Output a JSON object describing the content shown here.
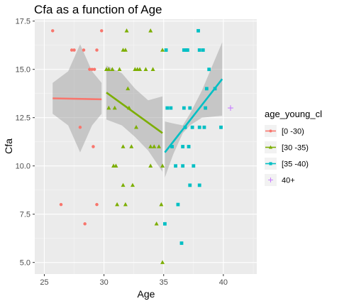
{
  "chart_data": {
    "type": "scatter",
    "title": "Cfa as a function of Age",
    "xlabel": "Age",
    "ylabel": "Cfa",
    "xlim": [
      24.2,
      42.8
    ],
    "ylim": [
      4.4,
      17.6
    ],
    "x_ticks": [
      25,
      30,
      35,
      40
    ],
    "y_ticks": [
      5.0,
      7.5,
      10.0,
      12.5,
      15.0,
      17.5
    ],
    "x_tick_labels": [
      "25",
      "30",
      "35",
      "40"
    ],
    "y_tick_labels": [
      "5.0",
      "7.5",
      "10.0",
      "12.5",
      "15.0",
      "17.5"
    ],
    "grid": true,
    "legend": {
      "title": "age_young_cl",
      "position": "right"
    },
    "series": [
      {
        "name": "[0 -30)",
        "color": "#f8766d",
        "marker": "circle",
        "points": [
          [
            25.7,
            17
          ],
          [
            29.8,
            17
          ],
          [
            27.3,
            16
          ],
          [
            27.5,
            16
          ],
          [
            28.3,
            16
          ],
          [
            29.4,
            16
          ],
          [
            28.8,
            15
          ],
          [
            29.0,
            15
          ],
          [
            29.2,
            15
          ],
          [
            28.0,
            12
          ],
          [
            29.1,
            11
          ],
          [
            26.4,
            8
          ],
          [
            29.4,
            8
          ],
          [
            28.4,
            7
          ]
        ],
        "trend": {
          "x": [
            25.7,
            29.8
          ],
          "y": [
            13.5,
            13.45
          ]
        },
        "band": {
          "x": [
            25.7,
            27.0,
            28.0,
            29.0,
            29.8
          ],
          "lower": [
            12.7,
            12.1,
            10.7,
            12.1,
            12.7
          ],
          "upper": [
            14.3,
            14.9,
            16.3,
            14.9,
            14.3
          ]
        }
      },
      {
        "name": "[30 -35)",
        "color": "#7cae00",
        "marker": "triangle",
        "points": [
          [
            31.9,
            17
          ],
          [
            33.9,
            17
          ],
          [
            31.6,
            16
          ],
          [
            31.8,
            16
          ],
          [
            34.9,
            16
          ],
          [
            30.2,
            15
          ],
          [
            30.4,
            15
          ],
          [
            30.7,
            15
          ],
          [
            31.3,
            15
          ],
          [
            32.6,
            15
          ],
          [
            32.8,
            15
          ],
          [
            33.0,
            15
          ],
          [
            33.5,
            15
          ],
          [
            34.1,
            15
          ],
          [
            32.0,
            14
          ],
          [
            30.4,
            13
          ],
          [
            30.9,
            13
          ],
          [
            32.1,
            13
          ],
          [
            32.7,
            12
          ],
          [
            31.6,
            11
          ],
          [
            32.3,
            11
          ],
          [
            33.9,
            11
          ],
          [
            34.2,
            11
          ],
          [
            34.6,
            11
          ],
          [
            30.8,
            10
          ],
          [
            31.0,
            10
          ],
          [
            33.9,
            10
          ],
          [
            34.9,
            10
          ],
          [
            31.6,
            9
          ],
          [
            32.4,
            9
          ],
          [
            31.1,
            8
          ],
          [
            31.8,
            8
          ],
          [
            34.8,
            8
          ],
          [
            34.4,
            7
          ],
          [
            34.9,
            5
          ]
        ],
        "trend": {
          "x": [
            30.2,
            34.9
          ],
          "y": [
            13.8,
            11.7
          ]
        },
        "band": {
          "x": [
            30.2,
            31.5,
            32.6,
            33.7,
            34.9
          ],
          "lower": [
            12.4,
            12.1,
            11.5,
            10.8,
            9.7
          ],
          "upper": [
            15.2,
            14.8,
            14.0,
            13.4,
            13.6
          ]
        }
      },
      {
        "name": "[35 -40)",
        "color": "#00bfc4",
        "marker": "square",
        "points": [
          [
            37.9,
            17
          ],
          [
            35.2,
            16
          ],
          [
            36.7,
            16
          ],
          [
            36.9,
            16
          ],
          [
            37.0,
            16
          ],
          [
            38.0,
            16
          ],
          [
            38.3,
            16
          ],
          [
            38.8,
            15
          ],
          [
            38.6,
            14
          ],
          [
            39.3,
            14
          ],
          [
            36.7,
            13
          ],
          [
            37.2,
            13
          ],
          [
            35.3,
            13
          ],
          [
            35.6,
            13
          ],
          [
            38.5,
            13
          ],
          [
            38.0,
            12
          ],
          [
            38.4,
            12
          ],
          [
            37.4,
            12
          ],
          [
            36.8,
            12
          ],
          [
            35.7,
            11
          ],
          [
            36.6,
            11
          ],
          [
            37.1,
            11
          ],
          [
            36.0,
            10
          ],
          [
            36.6,
            10
          ],
          [
            37.5,
            10
          ],
          [
            38.0,
            9
          ],
          [
            37.2,
            9
          ],
          [
            36.2,
            8
          ],
          [
            35.1,
            7
          ],
          [
            36.5,
            6
          ],
          [
            39.8,
            12
          ]
        ],
        "trend": {
          "x": [
            35.1,
            39.9
          ],
          "y": [
            10.7,
            14.5
          ]
        },
        "band": {
          "x": [
            35.1,
            35.8,
            36.6,
            37.2,
            38.2,
            39.9
          ],
          "lower": [
            9.4,
            10.6,
            11.7,
            12.1,
            12.5,
            12.6
          ],
          "upper": [
            12.3,
            12.2,
            12.1,
            12.7,
            13.9,
            16.4
          ]
        }
      },
      {
        "name": "40+",
        "color": "#c77cff",
        "marker": "plus",
        "points": [
          [
            40.6,
            13
          ]
        ]
      }
    ]
  }
}
